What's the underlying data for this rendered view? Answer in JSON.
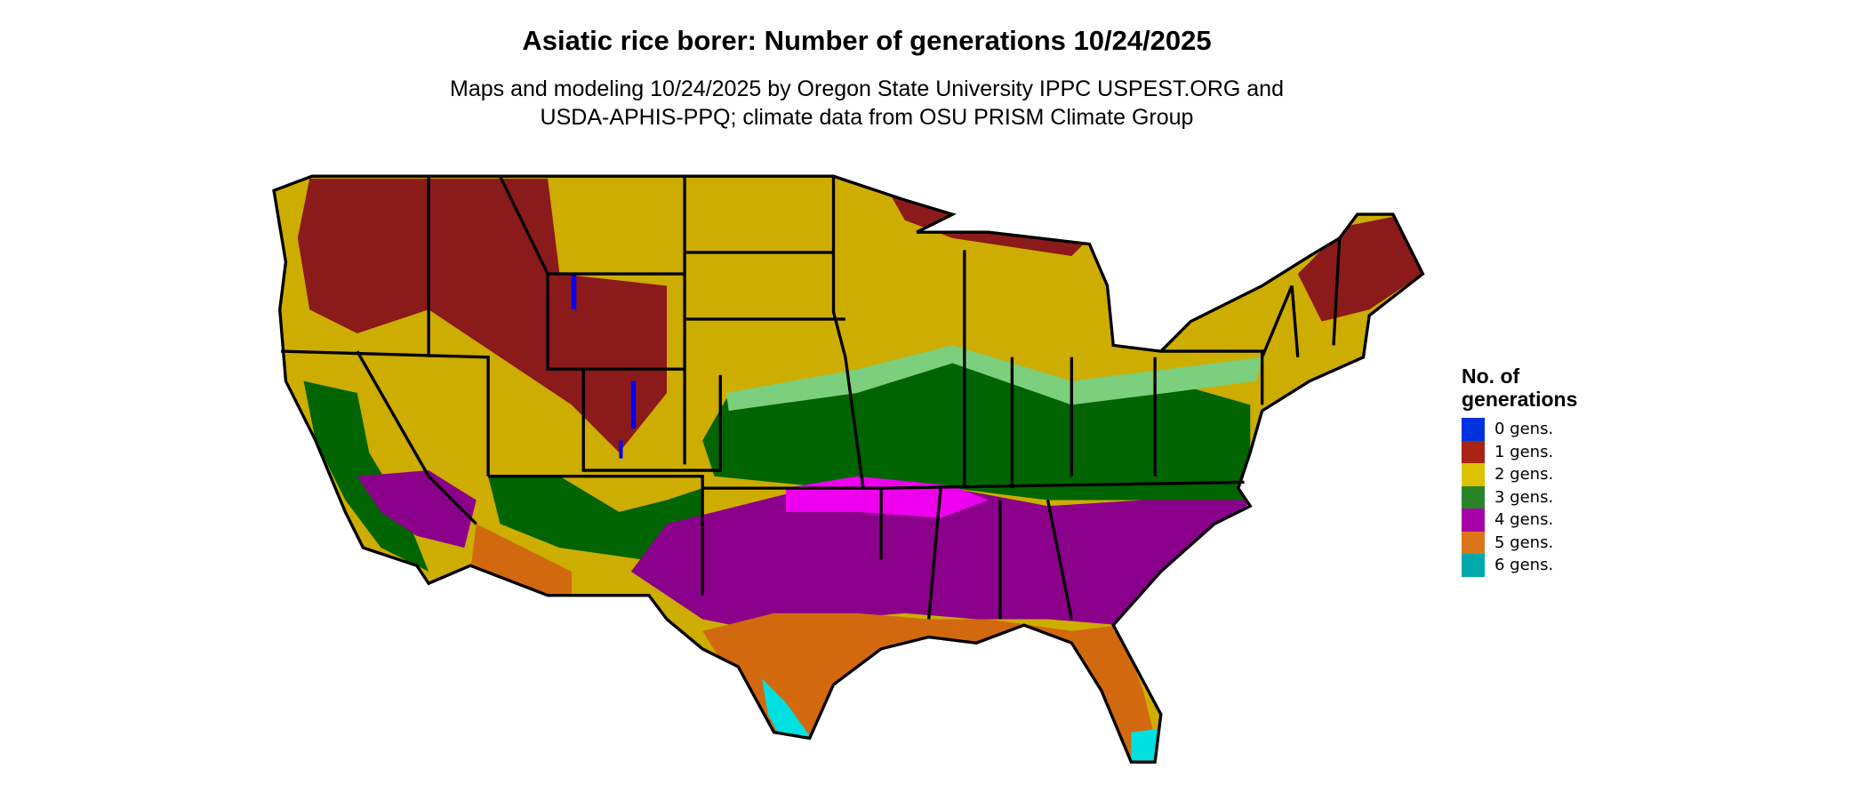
{
  "title": "Asiatic rice borer: Number of generations 10/24/2025",
  "subtitle_line1": "Maps and modeling 10/24/2025 by Oregon State University IPPC USPEST.ORG and",
  "subtitle_line2": "USDA-APHIS-PPQ; climate data from OSU PRISM Climate Group",
  "legend": {
    "title_line1": "No. of",
    "title_line2": "generations",
    "items": [
      {
        "label": "0 gens.",
        "color": "#0033dd"
      },
      {
        "label": "1 gens.",
        "color": "#a82314"
      },
      {
        "label": "2 gens.",
        "color": "#dcc200"
      },
      {
        "label": "3 gens.",
        "color": "#288428"
      },
      {
        "label": "4 gens.",
        "color": "#a600a6"
      },
      {
        "label": "5 gens.",
        "color": "#dc7418"
      },
      {
        "label": "6 gens.",
        "color": "#00aaaa"
      }
    ]
  },
  "map_colors": {
    "gen1": "#8b1a1a",
    "gen2": "#cdad00",
    "gen3": "#006400",
    "gen3_light": "#7ccf7c",
    "gen4": "#8b008b",
    "gen4_light": "#ee00ee",
    "gen5": "#d2690e",
    "gen6": "#00e0e0",
    "gen0": "#0000ff"
  }
}
